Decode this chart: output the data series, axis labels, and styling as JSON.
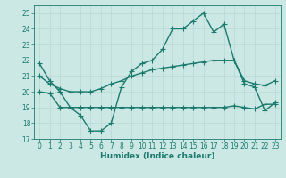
{
  "x": [
    0,
    1,
    2,
    3,
    4,
    5,
    6,
    7,
    8,
    9,
    10,
    11,
    12,
    13,
    14,
    15,
    16,
    17,
    18,
    19,
    20,
    21,
    22,
    23
  ],
  "y_main": [
    21.8,
    20.7,
    20.0,
    19.0,
    18.5,
    17.5,
    17.5,
    18.0,
    20.3,
    21.3,
    21.8,
    22.0,
    22.7,
    24.0,
    24.0,
    24.5,
    25.0,
    23.8,
    24.3,
    22.0,
    20.5,
    20.3,
    18.8,
    19.3
  ],
  "y_upper": [
    21.0,
    20.5,
    20.2,
    20.0,
    20.0,
    20.0,
    20.2,
    20.5,
    20.7,
    21.0,
    21.2,
    21.4,
    21.5,
    21.6,
    21.7,
    21.8,
    21.9,
    22.0,
    22.0,
    22.0,
    20.7,
    20.5,
    20.4,
    20.7
  ],
  "y_lower": [
    20.0,
    19.9,
    19.0,
    19.0,
    19.0,
    19.0,
    19.0,
    19.0,
    19.0,
    19.0,
    19.0,
    19.0,
    19.0,
    19.0,
    19.0,
    19.0,
    19.0,
    19.0,
    19.0,
    19.1,
    19.0,
    18.9,
    19.2,
    19.2
  ],
  "ylim": [
    17,
    25.5
  ],
  "yticks": [
    17,
    18,
    19,
    20,
    21,
    22,
    23,
    24,
    25
  ],
  "xlim": [
    -0.5,
    23.5
  ],
  "xticks": [
    0,
    1,
    2,
    3,
    4,
    5,
    6,
    7,
    8,
    9,
    10,
    11,
    12,
    13,
    14,
    15,
    16,
    17,
    18,
    19,
    20,
    21,
    22,
    23
  ],
  "xlabel": "Humidex (Indice chaleur)",
  "line_color": "#1a7a6e",
  "bg_color": "#cce8e4",
  "grid_color": "#b8d8d4",
  "marker": "+",
  "marker_size": 4,
  "line_width": 1.0,
  "fig_width": 3.2,
  "fig_height": 2.0,
  "dpi": 100
}
